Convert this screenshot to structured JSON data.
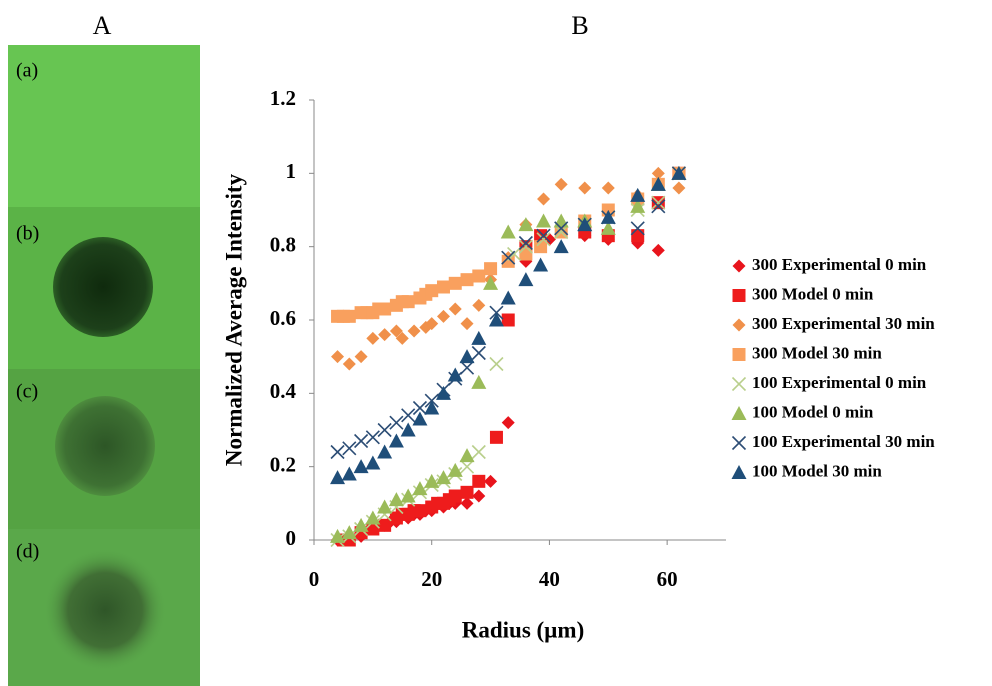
{
  "panel_labels": [
    "A",
    "B"
  ],
  "image_labels": [
    "(a)",
    "(b)",
    "(c)",
    "(d)"
  ],
  "chart_data": {
    "type": "scatter",
    "xlabel": "Radius (µm)",
    "ylabel": "Normalized Average Intensity",
    "xlim": [
      0,
      70
    ],
    "xticks": [
      0,
      20,
      40,
      60
    ],
    "ylim": [
      0,
      1.2
    ],
    "yticks": [
      0,
      0.2,
      0.4,
      0.6,
      0.8,
      1,
      1.2
    ],
    "legend": "right",
    "series": [
      {
        "name": "300 Experimental 0 min",
        "color": "#e8141c",
        "marker": "diamond",
        "x": [
          4,
          6,
          8,
          10,
          12,
          13,
          14,
          16,
          17,
          18,
          19,
          20,
          22,
          23,
          24,
          26,
          28,
          30,
          33,
          36,
          40,
          46,
          50,
          55,
          58.5
        ],
        "values": [
          0,
          0,
          0.01,
          0.03,
          0.04,
          0.05,
          0.05,
          0.06,
          0.07,
          0.07,
          0.08,
          0.08,
          0.09,
          0.1,
          0.1,
          0.1,
          0.12,
          0.16,
          0.32,
          0.76,
          0.82,
          0.83,
          0.82,
          0.81,
          0.79
        ]
      },
      {
        "name": "300 Model 0 min",
        "color": "#ee1c1c",
        "marker": "square",
        "x": [
          5,
          6,
          8,
          10,
          12,
          14,
          15,
          16,
          17,
          18,
          20,
          21,
          22,
          23,
          24,
          26,
          28,
          31,
          33,
          36,
          38.5,
          46,
          50,
          55,
          58.5,
          62
        ],
        "values": [
          0,
          0,
          0.02,
          0.03,
          0.04,
          0.06,
          0.07,
          0.07,
          0.08,
          0.08,
          0.09,
          0.1,
          0.1,
          0.11,
          0.12,
          0.13,
          0.16,
          0.28,
          0.6,
          0.8,
          0.83,
          0.84,
          0.83,
          0.83,
          0.92,
          1
        ]
      },
      {
        "name": "300 Experimental 30 min",
        "color": "#f0904a",
        "marker": "diamond",
        "x": [
          4,
          6,
          8,
          10,
          12,
          14,
          15,
          17,
          19,
          20,
          22,
          24,
          26,
          28,
          30,
          33,
          36,
          39,
          42,
          46,
          50,
          55,
          58.5,
          62
        ],
        "values": [
          0.5,
          0.48,
          0.5,
          0.55,
          0.56,
          0.57,
          0.55,
          0.57,
          0.58,
          0.59,
          0.61,
          0.63,
          0.59,
          0.64,
          0.71,
          0.77,
          0.86,
          0.93,
          0.97,
          0.96,
          0.96,
          0.94,
          1,
          0.96
        ]
      },
      {
        "name": "300 Model 30 min",
        "color": "#f9a05e",
        "marker": "square",
        "x": [
          4,
          5,
          6,
          8,
          9,
          10,
          11,
          12,
          14,
          15,
          16,
          18,
          19,
          20,
          22,
          24,
          26,
          28,
          30,
          33,
          36,
          38.5,
          42,
          46,
          50,
          55,
          58.5,
          62
        ],
        "values": [
          0.61,
          0.61,
          0.61,
          0.62,
          0.62,
          0.62,
          0.63,
          0.63,
          0.64,
          0.65,
          0.65,
          0.66,
          0.67,
          0.68,
          0.69,
          0.7,
          0.71,
          0.72,
          0.74,
          0.76,
          0.78,
          0.8,
          0.84,
          0.87,
          0.9,
          0.93,
          0.97,
          1
        ]
      },
      {
        "name": "100 Experimental 0 min",
        "color": "#b9cf8c",
        "marker": "x",
        "x": [
          4,
          6,
          8,
          10,
          12,
          14,
          16,
          18,
          20,
          22,
          24,
          26,
          28,
          31,
          34,
          36,
          39,
          42,
          46,
          50,
          55,
          58.5,
          62
        ],
        "values": [
          0,
          0.01,
          0.03,
          0.05,
          0.07,
          0.09,
          0.11,
          0.13,
          0.15,
          0.16,
          0.18,
          0.2,
          0.24,
          0.48,
          0.78,
          0.8,
          0.82,
          0.84,
          0.86,
          0.88,
          0.9,
          0.92,
          1
        ]
      },
      {
        "name": "100 Model 0 min",
        "color": "#9bbb59",
        "marker": "triangle",
        "x": [
          4,
          6,
          8,
          10,
          12,
          14,
          16,
          18,
          20,
          22,
          24,
          26,
          28,
          30,
          33,
          36,
          39,
          42,
          46,
          50,
          55,
          58.5,
          62
        ],
        "values": [
          0.01,
          0.02,
          0.04,
          0.06,
          0.09,
          0.11,
          0.12,
          0.14,
          0.16,
          0.17,
          0.19,
          0.23,
          0.43,
          0.7,
          0.84,
          0.86,
          0.87,
          0.87,
          0.87,
          0.85,
          0.91,
          0.97,
          1
        ]
      },
      {
        "name": "100 Experimental 30 min",
        "color": "#2c4d75",
        "marker": "x",
        "x": [
          4,
          6,
          8,
          10,
          12,
          14,
          16,
          18,
          20,
          22,
          24,
          26,
          28,
          31,
          33,
          36,
          39,
          42,
          46,
          50,
          55,
          58.5,
          62
        ],
        "values": [
          0.24,
          0.25,
          0.27,
          0.28,
          0.3,
          0.32,
          0.34,
          0.36,
          0.38,
          0.41,
          0.44,
          0.47,
          0.51,
          0.62,
          0.77,
          0.81,
          0.83,
          0.85,
          0.86,
          0.88,
          0.85,
          0.91,
          1
        ]
      },
      {
        "name": "100 Model 30 min",
        "color": "#1f4e79",
        "marker": "triangle",
        "x": [
          4,
          6,
          8,
          10,
          12,
          14,
          16,
          18,
          20,
          22,
          24,
          26,
          28,
          31,
          33,
          36,
          38.5,
          42,
          46,
          50,
          55,
          58.5,
          62
        ],
        "values": [
          0.17,
          0.18,
          0.2,
          0.21,
          0.24,
          0.27,
          0.3,
          0.33,
          0.36,
          0.4,
          0.45,
          0.5,
          0.55,
          0.6,
          0.66,
          0.71,
          0.75,
          0.8,
          0.86,
          0.88,
          0.94,
          0.97,
          1
        ]
      }
    ]
  }
}
